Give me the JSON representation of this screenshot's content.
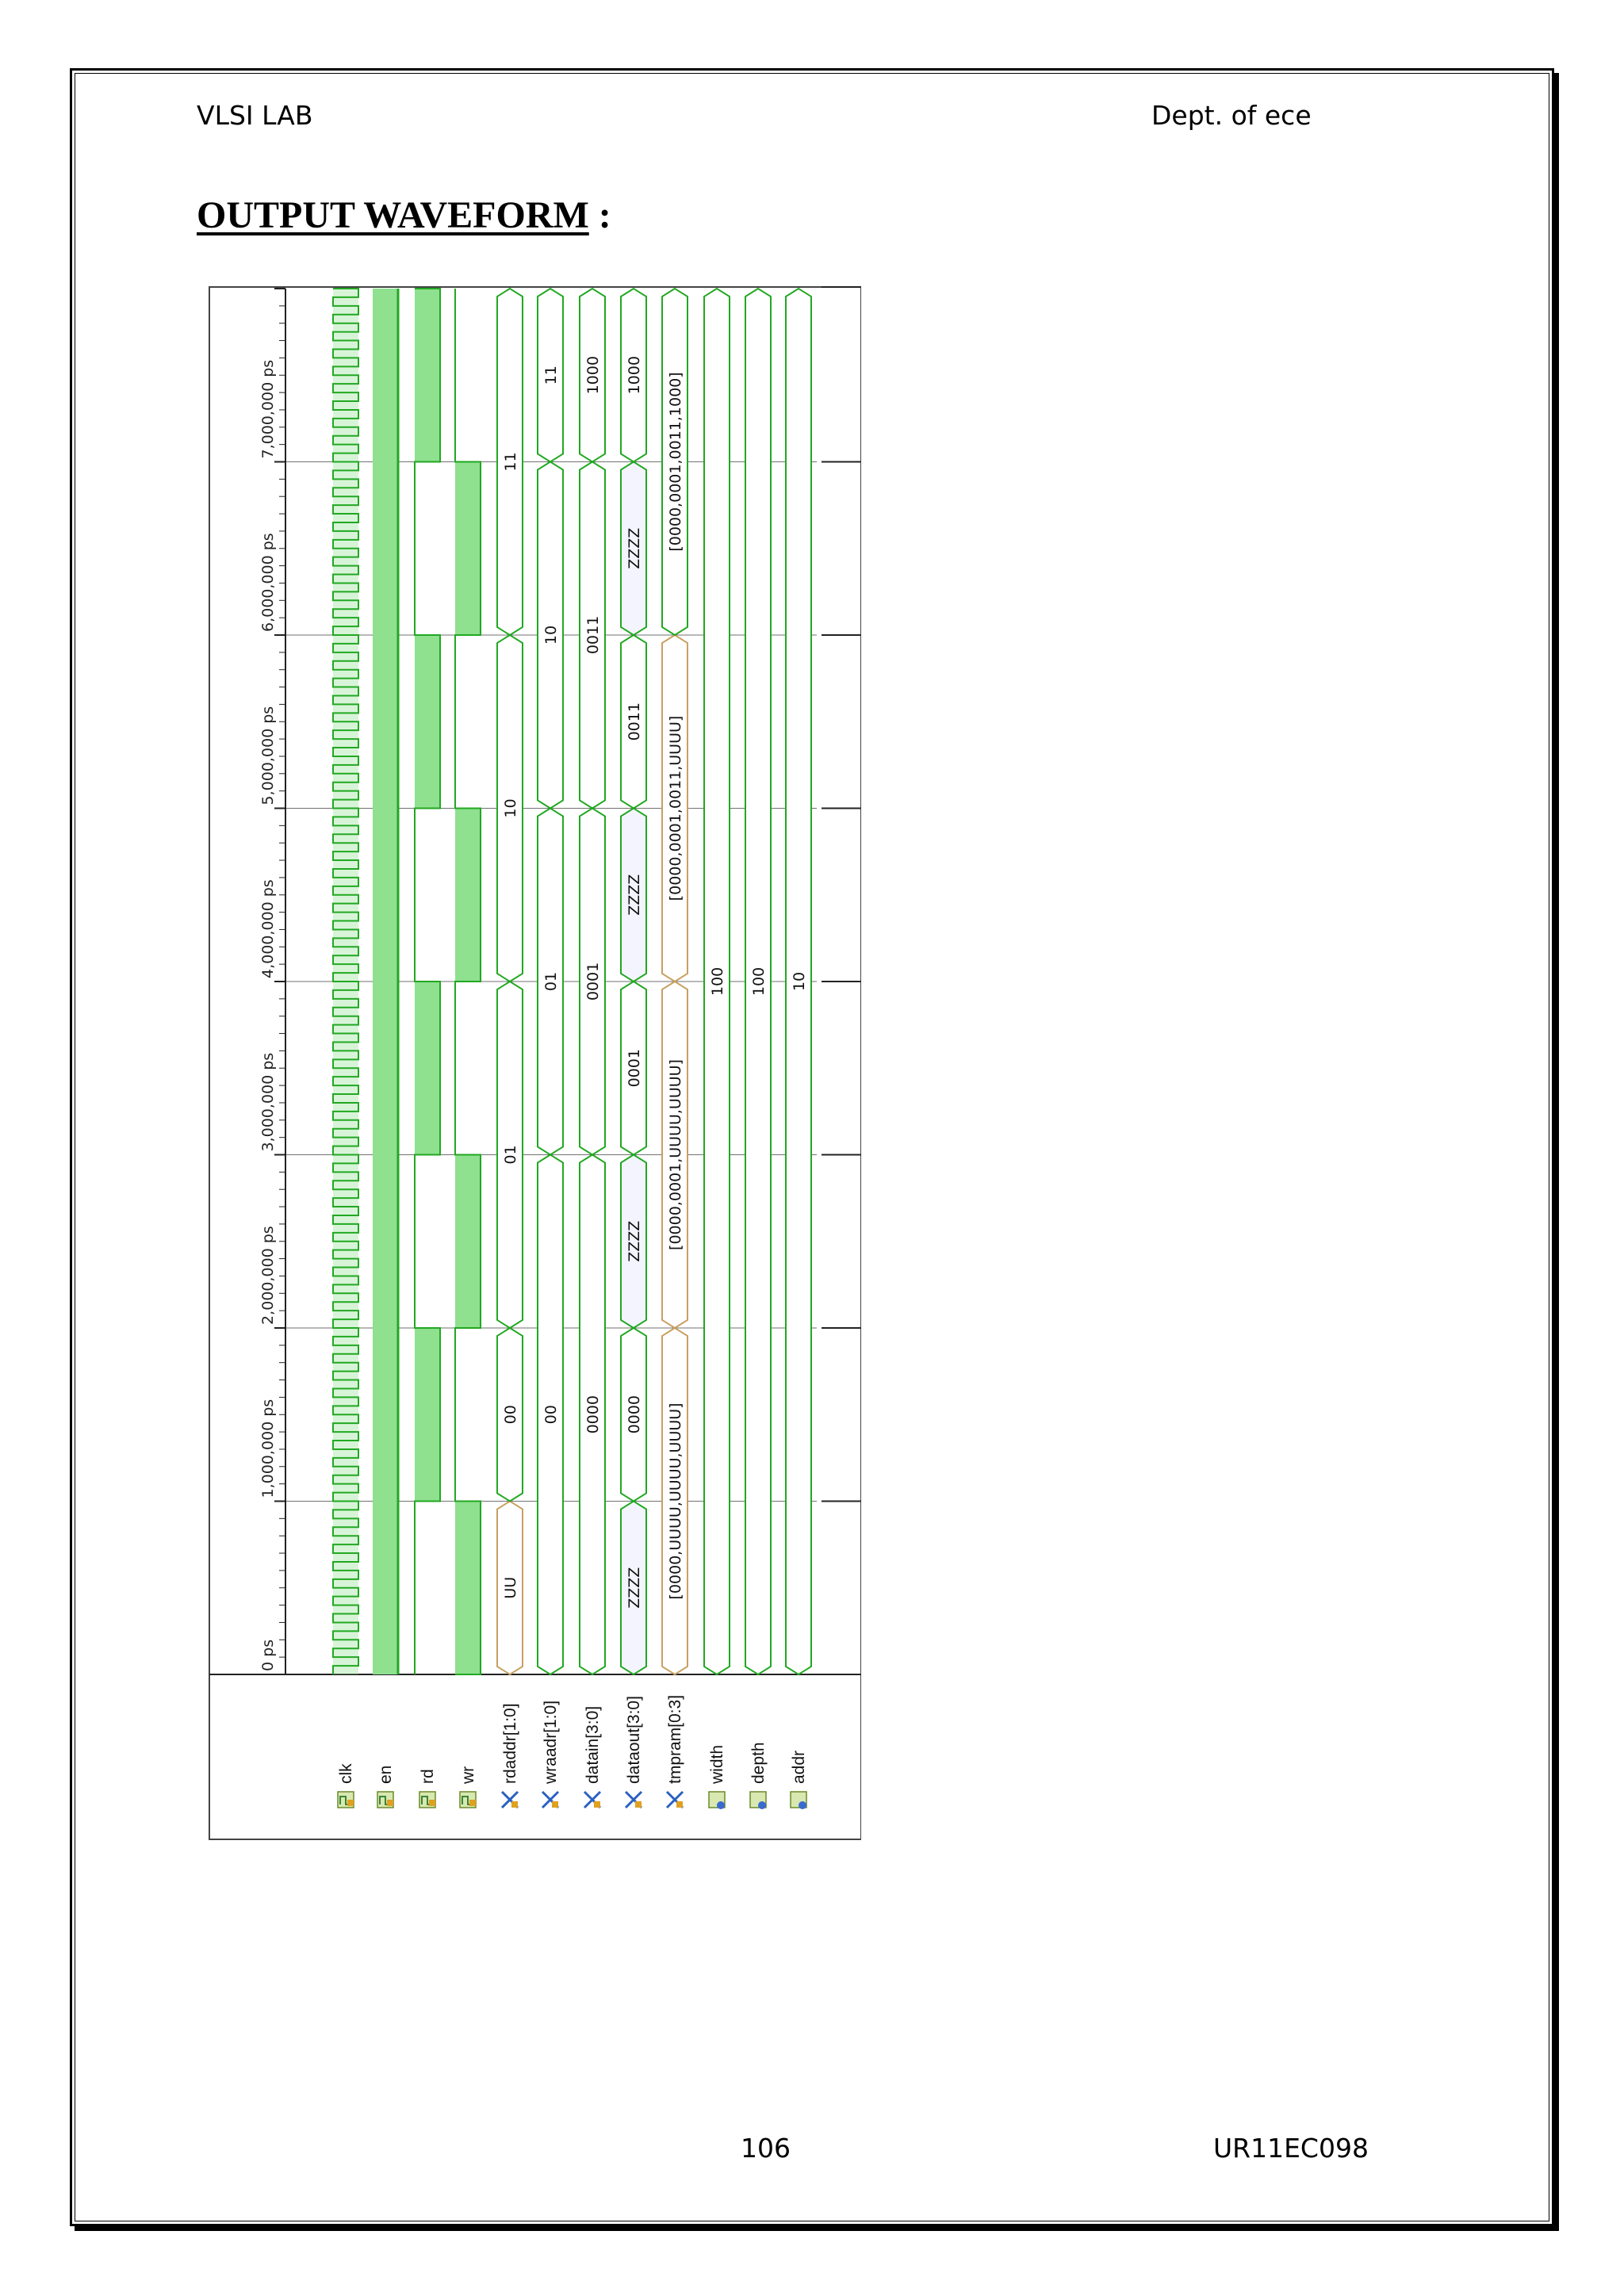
{
  "header": {
    "left": "VLSI LAB",
    "right": "Dept. of ece"
  },
  "title": {
    "text": "OUTPUT WAVEFORM",
    "suffix": " :"
  },
  "footer": {
    "page": "106",
    "id": "UR11EC098"
  },
  "waveform": {
    "time_labels": [
      "0 ps",
      "1,000,000 ps",
      "2,000,000 ps",
      "3,000,000 ps",
      "4,000,000 ps",
      "5,000,000 ps",
      "6,000,000 ps",
      "7,000,000 ps"
    ],
    "time_range_ps": [
      0,
      8000000
    ],
    "signals": [
      {
        "name": "clk",
        "kind": "bit",
        "icon": "bit-signal-icon"
      },
      {
        "name": "en",
        "kind": "bit",
        "icon": "bit-signal-icon"
      },
      {
        "name": "rd",
        "kind": "bit",
        "icon": "bit-signal-icon"
      },
      {
        "name": "wr",
        "kind": "bit",
        "icon": "bit-signal-icon"
      },
      {
        "name": "rdaddr[1:0]",
        "kind": "bus",
        "icon": "bus-signal-icon"
      },
      {
        "name": "wraadr[1:0]",
        "kind": "bus",
        "icon": "bus-signal-icon"
      },
      {
        "name": "datain[3:0]",
        "kind": "bus",
        "icon": "bus-signal-icon"
      },
      {
        "name": "dataout[3:0]",
        "kind": "bus",
        "icon": "bus-signal-icon"
      },
      {
        "name": "tmpram[0:3]",
        "kind": "bus",
        "icon": "array-signal-icon"
      },
      {
        "name": "width",
        "kind": "param",
        "icon": "constant-icon"
      },
      {
        "name": "depth",
        "kind": "param",
        "icon": "constant-icon"
      },
      {
        "name": "addr",
        "kind": "param",
        "icon": "constant-icon"
      }
    ],
    "rdaddr_values": [
      {
        "t0": 0,
        "t1": 1000000,
        "v": "UU",
        "undefined": true
      },
      {
        "t0": 1000000,
        "t1": 2000000,
        "v": "00"
      },
      {
        "t0": 2000000,
        "t1": 4000000,
        "v": "01"
      },
      {
        "t0": 4000000,
        "t1": 6000000,
        "v": "10"
      },
      {
        "t0": 6000000,
        "t1": 8000000,
        "v": "11"
      }
    ],
    "wraadr_values": [
      {
        "t0": 0,
        "t1": 3000000,
        "v": "00"
      },
      {
        "t0": 3000000,
        "t1": 5000000,
        "v": "01"
      },
      {
        "t0": 5000000,
        "t1": 7000000,
        "v": "10"
      },
      {
        "t0": 7000000,
        "t1": 8000000,
        "v": "11"
      }
    ],
    "datain_values": [
      {
        "t0": 0,
        "t1": 3000000,
        "v": "0000"
      },
      {
        "t0": 3000000,
        "t1": 5000000,
        "v": "0001"
      },
      {
        "t0": 5000000,
        "t1": 7000000,
        "v": "0011"
      },
      {
        "t0": 7000000,
        "t1": 8000000,
        "v": "1000"
      }
    ],
    "dataout_values": [
      {
        "t0": 0,
        "t1": 1000000,
        "v": "ZZZZ",
        "z": true
      },
      {
        "t0": 1000000,
        "t1": 2000000,
        "v": "0000"
      },
      {
        "t0": 2000000,
        "t1": 3000000,
        "v": "ZZZZ",
        "z": true
      },
      {
        "t0": 3000000,
        "t1": 4000000,
        "v": "0001"
      },
      {
        "t0": 4000000,
        "t1": 5000000,
        "v": "ZZZZ",
        "z": true
      },
      {
        "t0": 5000000,
        "t1": 6000000,
        "v": "0011"
      },
      {
        "t0": 6000000,
        "t1": 7000000,
        "v": "ZZZZ",
        "z": true
      },
      {
        "t0": 7000000,
        "t1": 8000000,
        "v": "1000"
      }
    ],
    "tmpram_values": [
      {
        "t0": 0,
        "t1": 2000000,
        "v": "[0000,UUUU,UUUU,UUUU]",
        "undefined": true
      },
      {
        "t0": 2000000,
        "t1": 4000000,
        "v": "[0000,0001,UUUU,UUUU]",
        "undefined": true
      },
      {
        "t0": 4000000,
        "t1": 6000000,
        "v": "[0000,0001,0011,UUUU]",
        "undefined": true
      },
      {
        "t0": 6000000,
        "t1": 8000000,
        "v": "[0000,0001,0011,1000]"
      }
    ],
    "width_value": "100",
    "depth_value": "100",
    "addr_value": "10",
    "en_state": "high",
    "rd_high_intervals_ps": [
      [
        1000000,
        2000000
      ],
      [
        3000000,
        4000000
      ],
      [
        5000000,
        6000000
      ],
      [
        7000000,
        8000000
      ]
    ],
    "wr_high_intervals_ps": [
      [
        0,
        1000000
      ],
      [
        2000000,
        3000000
      ],
      [
        4000000,
        5000000
      ],
      [
        6000000,
        7000000
      ]
    ],
    "colors": {
      "wave": "#21a821",
      "fill": "#8fe08f",
      "bus_undefined": "#c8a060",
      "grid": "#000000"
    }
  }
}
